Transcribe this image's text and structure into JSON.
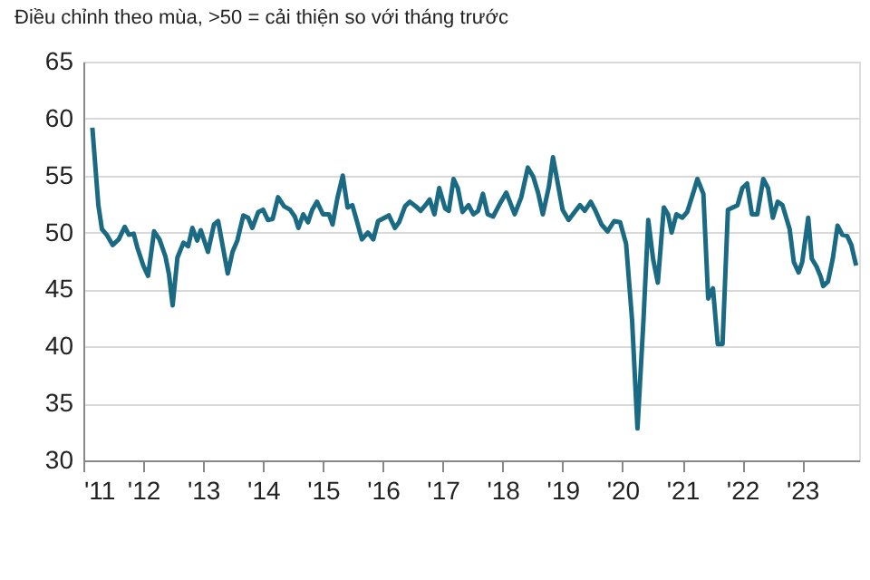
{
  "chart_data": {
    "type": "line",
    "subtitle": "Điều chỉnh theo mùa, >50 = cải thiện so với tháng trước",
    "x": [
      2011.15,
      2011.25,
      2011.31,
      2011.39,
      2011.49,
      2011.59,
      2011.69,
      2011.76,
      2011.84,
      2011.9,
      2012.0,
      2012.08,
      2012.18,
      2012.27,
      2012.37,
      2012.43,
      2012.49,
      2012.57,
      2012.67,
      2012.75,
      2012.82,
      2012.9,
      2012.96,
      2013.08,
      2013.18,
      2013.25,
      2013.33,
      2013.41,
      2013.49,
      2013.57,
      2013.67,
      2013.75,
      2013.82,
      2013.92,
      2014.0,
      2014.08,
      2014.16,
      2014.25,
      2014.35,
      2014.45,
      2014.53,
      2014.59,
      2014.67,
      2014.75,
      2014.82,
      2014.9,
      2015.0,
      2015.1,
      2015.16,
      2015.24,
      2015.33,
      2015.41,
      2015.49,
      2015.55,
      2015.65,
      2015.75,
      2015.84,
      2015.92,
      2016.1,
      2016.2,
      2016.27,
      2016.37,
      2016.45,
      2016.55,
      2016.63,
      2016.71,
      2016.78,
      2016.86,
      2016.94,
      2017.04,
      2017.1,
      2017.18,
      2017.25,
      2017.33,
      2017.43,
      2017.51,
      2017.59,
      2017.67,
      2017.75,
      2017.84,
      2017.96,
      2018.06,
      2018.2,
      2018.31,
      2018.42,
      2018.51,
      2018.59,
      2018.67,
      2018.77,
      2018.84,
      2018.92,
      2019.0,
      2019.1,
      2019.2,
      2019.29,
      2019.37,
      2019.47,
      2019.55,
      2019.65,
      2019.75,
      2019.86,
      2019.96,
      2020.06,
      2020.16,
      2020.25,
      2020.35,
      2020.43,
      2020.51,
      2020.59,
      2020.69,
      2020.76,
      2020.82,
      2020.9,
      2021.0,
      2021.08,
      2021.2,
      2021.25,
      2021.35,
      2021.43,
      2021.51,
      2021.59,
      2021.67,
      2021.76,
      2021.84,
      2021.92,
      2022.0,
      2022.08,
      2022.16,
      2022.25,
      2022.35,
      2022.43,
      2022.51,
      2022.59,
      2022.67,
      2022.79,
      2022.86,
      2022.94,
      2023.0,
      2023.1,
      2023.16,
      2023.24,
      2023.31,
      2023.35,
      2023.43,
      2023.51,
      2023.59,
      2023.67,
      2023.75,
      2023.82,
      2023.9
    ],
    "series": [
      {
        "color": "#1a6a84",
        "values": [
          59.2,
          52.4,
          50.3,
          49.8,
          48.9,
          49.4,
          50.5,
          49.8,
          49.9,
          48.7,
          47.1,
          46.2,
          50.1,
          49.4,
          47.9,
          46.3,
          43.6,
          47.8,
          49.1,
          48.8,
          50.4,
          49.3,
          50.2,
          48.3,
          50.7,
          51.0,
          48.7,
          46.4,
          48.3,
          49.3,
          51.5,
          51.3,
          50.4,
          51.8,
          52.0,
          51.1,
          51.2,
          53.1,
          52.3,
          52.0,
          51.4,
          50.4,
          51.6,
          50.9,
          52.0,
          52.7,
          51.6,
          51.6,
          50.7,
          53.0,
          55.0,
          52.2,
          52.4,
          51.3,
          49.4,
          50.0,
          49.4,
          51.0,
          51.5,
          50.4,
          50.9,
          52.3,
          52.7,
          52.3,
          51.9,
          52.4,
          52.9,
          51.6,
          53.9,
          52.1,
          51.9,
          54.7,
          53.9,
          51.8,
          52.4,
          51.6,
          51.9,
          53.4,
          51.6,
          51.4,
          52.6,
          53.5,
          51.6,
          53.1,
          55.7,
          54.9,
          53.5,
          51.6,
          54.0,
          56.6,
          54.3,
          52.0,
          51.1,
          51.8,
          52.4,
          51.9,
          52.7,
          51.9,
          50.7,
          50.1,
          51.0,
          50.9,
          49.0,
          42.3,
          32.8,
          42.3,
          51.1,
          47.7,
          45.6,
          52.2,
          51.6,
          50.0,
          51.6,
          51.3,
          51.8,
          53.8,
          54.7,
          53.4,
          44.2,
          45.1,
          40.2,
          40.2,
          52.0,
          52.2,
          52.4,
          53.9,
          54.3,
          51.6,
          51.6,
          54.7,
          53.9,
          51.3,
          52.7,
          52.4,
          50.3,
          47.4,
          46.5,
          47.4,
          51.3,
          47.7,
          47.0,
          46.1,
          45.3,
          45.7,
          47.7,
          50.6,
          49.8,
          49.7,
          48.9,
          47.1
        ]
      }
    ],
    "xlim": [
      2011,
      2023.95
    ],
    "xticks": [
      {
        "value": 2011,
        "label": "'11"
      },
      {
        "value": 2012,
        "label": "'12"
      },
      {
        "value": 2013,
        "label": "'13"
      },
      {
        "value": 2014,
        "label": "'14"
      },
      {
        "value": 2015,
        "label": "'15"
      },
      {
        "value": 2016,
        "label": "'16"
      },
      {
        "value": 2017,
        "label": "'17"
      },
      {
        "value": 2018,
        "label": "'18"
      },
      {
        "value": 2019,
        "label": "'19"
      },
      {
        "value": 2020,
        "label": "'20"
      },
      {
        "value": 2021,
        "label": "'21"
      },
      {
        "value": 2022,
        "label": "'22"
      },
      {
        "value": 2023,
        "label": "'23"
      }
    ],
    "ylim": [
      30,
      65
    ],
    "yticks": [
      30,
      35,
      40,
      45,
      50,
      55,
      60,
      65
    ],
    "grid": "y",
    "marker": "none",
    "line_style": "solid"
  }
}
